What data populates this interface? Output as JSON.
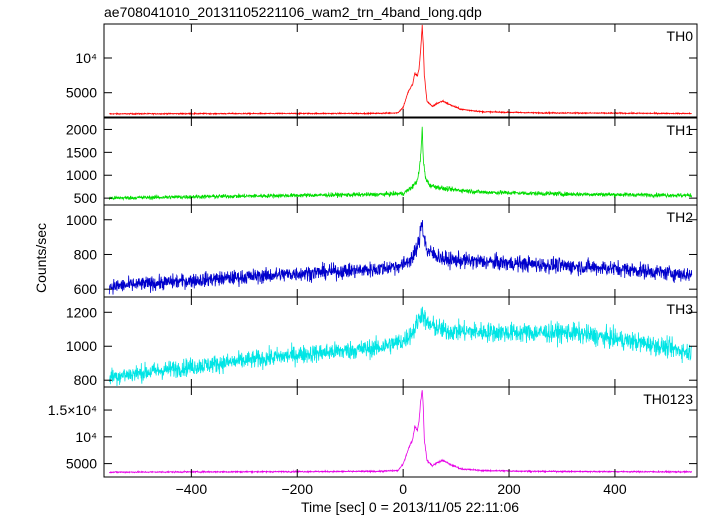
{
  "chart_data": {
    "type": "line",
    "title": "ae708041010_20131105221106_wam2_trn_4band_long.qdp",
    "xlabel": "Time [sec] 0 = 2013/11/05 22:11:06",
    "ylabel": "Counts/sec",
    "xlim": [
      -565,
      555
    ],
    "x_ticks": [
      -400,
      -200,
      0,
      200,
      400
    ],
    "panels": [
      {
        "name": "TH0",
        "color": "#ff0000",
        "ylim": [
          1500,
          14900
        ],
        "y_ticks": [
          5000,
          10000
        ],
        "y_tick_labels": [
          "5000",
          "10⁴"
        ],
        "baseline": 2000,
        "noise": 40,
        "points": [
          [
            -555,
            1950
          ],
          [
            -400,
            1980
          ],
          [
            -200,
            2000
          ],
          [
            -50,
            2020
          ],
          [
            -10,
            2100
          ],
          [
            0,
            2900
          ],
          [
            10,
            5200
          ],
          [
            18,
            6200
          ],
          [
            22,
            7800
          ],
          [
            27,
            7400
          ],
          [
            30,
            8500
          ],
          [
            33,
            11000
          ],
          [
            36,
            14600
          ],
          [
            38,
            12000
          ],
          [
            40,
            7500
          ],
          [
            45,
            3800
          ],
          [
            55,
            3000
          ],
          [
            65,
            3500
          ],
          [
            75,
            3800
          ],
          [
            90,
            3200
          ],
          [
            110,
            2600
          ],
          [
            150,
            2250
          ],
          [
            250,
            2100
          ],
          [
            400,
            2050
          ],
          [
            550,
            2000
          ]
        ]
      },
      {
        "name": "TH1",
        "color": "#00dd00",
        "ylim": [
          350,
          2250
        ],
        "y_ticks": [
          500,
          1000,
          1500,
          2000
        ],
        "y_tick_labels": [
          "500",
          "1000",
          "1500",
          "2000"
        ],
        "baseline": 530,
        "noise": 22,
        "points": [
          [
            -555,
            500
          ],
          [
            -400,
            530
          ],
          [
            -200,
            560
          ],
          [
            -50,
            580
          ],
          [
            0,
            600
          ],
          [
            15,
            720
          ],
          [
            25,
            850
          ],
          [
            30,
            1050
          ],
          [
            34,
            1550
          ],
          [
            36,
            2050
          ],
          [
            38,
            1350
          ],
          [
            42,
            950
          ],
          [
            50,
            780
          ],
          [
            80,
            700
          ],
          [
            150,
            630
          ],
          [
            300,
            590
          ],
          [
            550,
            560
          ]
        ]
      },
      {
        "name": "TH2",
        "color": "#0000cc",
        "ylim": [
          555,
          1085
        ],
        "y_ticks": [
          600,
          800,
          1000
        ],
        "y_tick_labels": [
          "600",
          "800",
          "1000"
        ],
        "baseline": 700,
        "noise": 22,
        "points": [
          [
            -555,
            615
          ],
          [
            -400,
            650
          ],
          [
            -200,
            690
          ],
          [
            -50,
            715
          ],
          [
            0,
            740
          ],
          [
            20,
            790
          ],
          [
            30,
            870
          ],
          [
            35,
            1000
          ],
          [
            38,
            930
          ],
          [
            45,
            820
          ],
          [
            80,
            770
          ],
          [
            200,
            750
          ],
          [
            400,
            720
          ],
          [
            550,
            680
          ]
        ]
      },
      {
        "name": "TH3",
        "color": "#00e5e5",
        "ylim": [
          760,
          1290
        ],
        "y_ticks": [
          800,
          1000,
          1200
        ],
        "y_tick_labels": [
          "800",
          "1000",
          "1200"
        ],
        "baseline": 1000,
        "noise": 28,
        "points": [
          [
            -555,
            820
          ],
          [
            -400,
            880
          ],
          [
            -200,
            950
          ],
          [
            -50,
            990
          ],
          [
            0,
            1030
          ],
          [
            20,
            1090
          ],
          [
            35,
            1200
          ],
          [
            45,
            1130
          ],
          [
            80,
            1090
          ],
          [
            200,
            1080
          ],
          [
            320,
            1080
          ],
          [
            450,
            1020
          ],
          [
            550,
            960
          ]
        ]
      },
      {
        "name": "TH0123",
        "color": "#e600e6",
        "ylim": [
          2500,
          19300
        ],
        "y_ticks": [
          5000,
          10000,
          15000
        ],
        "y_tick_labels": [
          "5000",
          "10⁴",
          "1.5×10⁴"
        ],
        "baseline": 3400,
        "noise": 60,
        "points": [
          [
            -555,
            3400
          ],
          [
            -400,
            3450
          ],
          [
            -200,
            3500
          ],
          [
            -50,
            3550
          ],
          [
            -10,
            3700
          ],
          [
            0,
            4900
          ],
          [
            10,
            7800
          ],
          [
            18,
            9500
          ],
          [
            22,
            12000
          ],
          [
            27,
            11200
          ],
          [
            30,
            13000
          ],
          [
            33,
            16500
          ],
          [
            36,
            18900
          ],
          [
            38,
            15500
          ],
          [
            40,
            9500
          ],
          [
            45,
            5600
          ],
          [
            55,
            4600
          ],
          [
            65,
            5200
          ],
          [
            75,
            5600
          ],
          [
            90,
            4800
          ],
          [
            110,
            4000
          ],
          [
            150,
            3700
          ],
          [
            250,
            3550
          ],
          [
            400,
            3500
          ],
          [
            550,
            3450
          ]
        ]
      }
    ]
  }
}
